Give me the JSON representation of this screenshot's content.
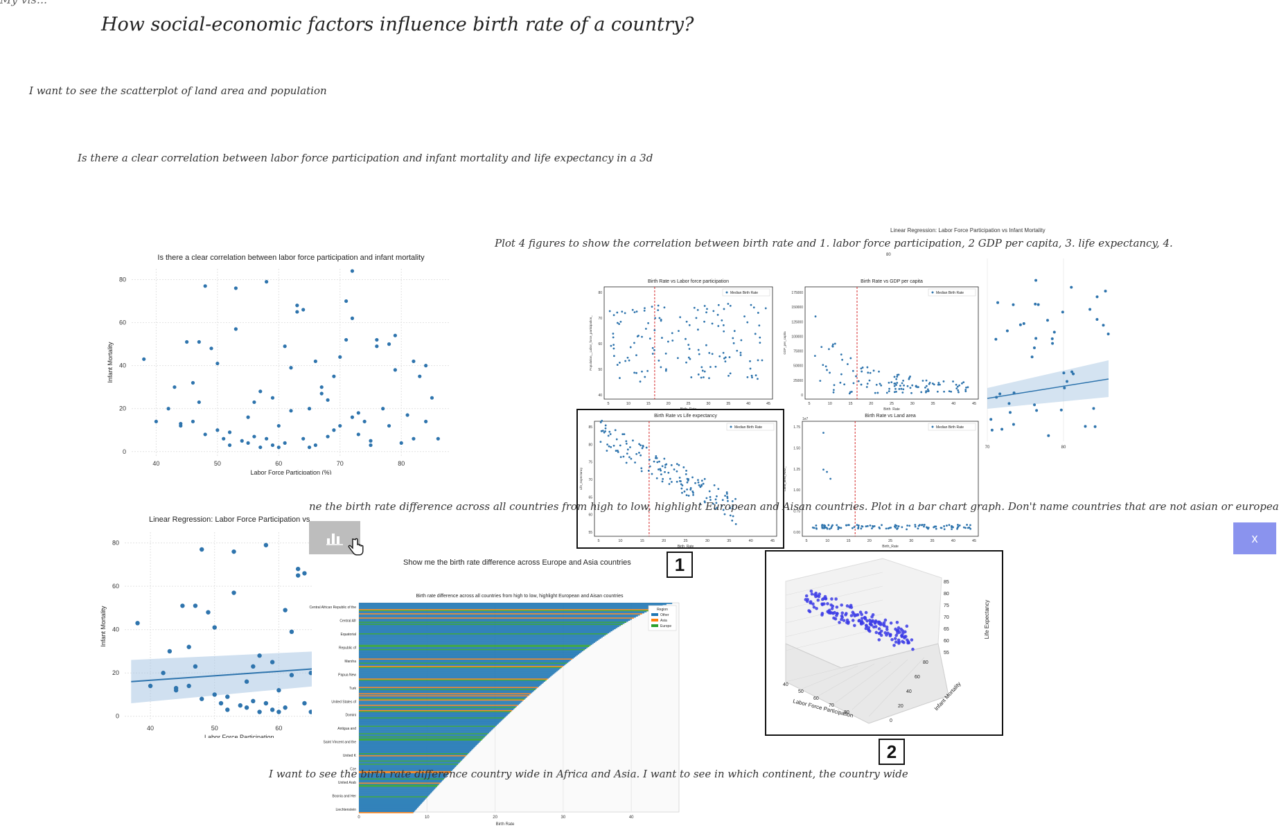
{
  "header": {
    "corner_label": "My vis..."
  },
  "canvas": {
    "main_title": "How social-economic factors influence birth rate of a country?",
    "note_1": "I want to see the scatterplot of land area and population",
    "note_2": "Is there a clear correlation between labor force participation and infant mortality and life expectancy in a 3d",
    "note_3": "Plot 4 figures to show the correlation between birth rate and 1. labor force participation, 2 GDP per capita, 3. life expectancy, 4.",
    "note_4": "ne the birth rate difference across all countries from high to low, highlight European and Aisan countries. Plot in a bar chart graph. Don't name countries that are not asian or european",
    "note_5": "Show me the birth rate difference across Europe and Asia countries",
    "note_6": "I want to see the birth rate difference country wide in Africa and Asia. I want to see in which continent, the country wide",
    "badge_1": "1",
    "badge_2": "2",
    "close_button": "x"
  },
  "chart_data": [
    {
      "type": "scatter",
      "title": "Is there a clear correlation between labor force participation and infant mortality",
      "xlabel": "Labor Force Participation (%)",
      "ylabel": "Infant Mortality",
      "xlim": [
        36,
        88
      ],
      "ylim": [
        -2,
        85
      ],
      "xticks": [
        "40",
        "50",
        "60",
        "70",
        "80"
      ],
      "yticks": [
        "0",
        "20",
        "40",
        "60",
        "80"
      ],
      "grid": true,
      "x": [
        38,
        40,
        42,
        43,
        44,
        45,
        46,
        47,
        48,
        49,
        50,
        51,
        52,
        53,
        54,
        55,
        56,
        57,
        58,
        59,
        60,
        61,
        62,
        63,
        64,
        65,
        66,
        67,
        68,
        69,
        70,
        71,
        72,
        73,
        74,
        75,
        76,
        77,
        78,
        79,
        80,
        81,
        82,
        83,
        84,
        85,
        86,
        47,
        53,
        57,
        59,
        61,
        63,
        66,
        69,
        71,
        72,
        48,
        50,
        55,
        58,
        62,
        64,
        67,
        70,
        73,
        76,
        79,
        84,
        44,
        46,
        52,
        56,
        60,
        65,
        68,
        72,
        75,
        78,
        82
      ],
      "y": [
        43,
        14,
        20,
        30,
        13,
        51,
        14,
        23,
        77,
        48,
        10,
        6,
        3,
        76,
        5,
        4,
        7,
        2,
        6,
        3,
        2,
        4,
        39,
        65,
        6,
        2,
        3,
        30,
        24,
        10,
        12,
        70,
        84,
        18,
        14,
        3,
        52,
        20,
        12,
        38,
        4,
        17,
        6,
        35,
        14,
        25,
        6,
        51,
        57,
        28,
        25,
        49,
        68,
        42,
        35,
        52,
        62,
        8,
        41,
        16,
        79,
        19,
        66,
        27,
        44,
        8,
        49,
        54,
        40,
        12,
        32,
        9,
        23,
        12,
        20,
        7,
        16,
        5,
        50,
        42
      ]
    },
    {
      "type": "scatter",
      "title": "Linear Regression: Labor Force Participation vs Infant Mortality",
      "xlabel": "Labor Force Participation",
      "ylabel": "Infant Mortality",
      "xlim": [
        36,
        66
      ],
      "ylim": [
        -2,
        85
      ],
      "xticks": [
        "40",
        "50",
        "60"
      ],
      "yticks": [
        "0",
        "20",
        "40",
        "60",
        "80"
      ],
      "x": [
        38,
        40,
        42,
        43,
        44,
        45,
        46,
        47,
        48,
        49,
        50,
        51,
        52,
        53,
        54,
        55,
        56,
        57,
        58,
        59,
        60,
        61,
        62,
        63,
        64,
        65,
        47,
        53,
        57,
        59,
        61,
        63,
        48,
        50,
        55,
        58,
        62,
        64,
        44,
        46,
        52,
        56,
        60,
        65
      ],
      "y": [
        43,
        14,
        20,
        30,
        13,
        51,
        14,
        23,
        77,
        48,
        10,
        6,
        3,
        76,
        5,
        4,
        7,
        2,
        6,
        3,
        2,
        4,
        39,
        65,
        6,
        2,
        51,
        57,
        28,
        25,
        49,
        68,
        8,
        41,
        16,
        79,
        19,
        66,
        12,
        32,
        9,
        23,
        12,
        20
      ]
    },
    {
      "type": "scatter",
      "title": "Birth Rate vs Labor force participation",
      "xlabel": "Birth_Rate",
      "ylabel": "Population__Labor_force_participation_",
      "legend": "Median Birth Rate",
      "xticks": [
        "5",
        "10",
        "15",
        "20",
        "25",
        "30",
        "35",
        "40",
        "45"
      ],
      "yticks": [
        "40",
        "50",
        "60",
        "70",
        "80"
      ]
    },
    {
      "type": "scatter",
      "title": "Birth Rate vs GDP per capita",
      "xlabel": "Birth_Rate",
      "ylabel": "GDP_per_capita",
      "legend": "Median Birth Rate",
      "xticks": [
        "5",
        "10",
        "15",
        "20",
        "25",
        "30",
        "35",
        "40",
        "45"
      ],
      "yticks": [
        "0",
        "25000",
        "50000",
        "75000",
        "100000",
        "125000",
        "150000",
        "175000"
      ]
    },
    {
      "type": "scatter",
      "title": "Birth Rate vs Life expectancy",
      "xlabel": "Birth_Rate",
      "ylabel": "Life_expectancy",
      "legend": "Median Birth Rate",
      "xticks": [
        "5",
        "10",
        "15",
        "20",
        "25",
        "30",
        "35",
        "40",
        "45"
      ],
      "yticks": [
        "55",
        "60",
        "65",
        "70",
        "75",
        "80",
        "85"
      ]
    },
    {
      "type": "scatter",
      "title": "Birth Rate vs Land area",
      "xlabel": "Birth_Rate",
      "ylabel": "Land_area_Km2_",
      "legend": "Median Birth Rate",
      "offset_label": "1e7",
      "xticks": [
        "5",
        "10",
        "15",
        "20",
        "25",
        "30",
        "35",
        "40",
        "45"
      ],
      "yticks": [
        "0.00",
        "0.75",
        "1.00",
        "1.25",
        "1.50",
        "1.75"
      ]
    },
    {
      "type": "bar",
      "title": "Birth rate difference across all countries from high to low, highlight European and Aisan countries",
      "xlabel": "Birth Rate",
      "xticks": [
        "0",
        "10",
        "20",
        "30",
        "40"
      ],
      "legend_title": "Region",
      "series": [
        {
          "name": "Other",
          "color": "#1f77b4"
        },
        {
          "name": "Asia",
          "color": "#ff7f0e"
        },
        {
          "name": "Europe",
          "color": "#2ca02c"
        }
      ],
      "category_labels": [
        "Central African Republic of the",
        "Central Afr",
        "Equatorial",
        "Republic of",
        "Marsha",
        "Papua New",
        "Turk",
        "United States of",
        "Domini",
        "Antigua and",
        "Saint Vincent and the",
        "United K",
        "Cze",
        "United Arab",
        "Bosnia and Her",
        "Liechtenstein"
      ]
    },
    {
      "type": "scatter",
      "title": "",
      "xlabel": "Labor Force Participation",
      "ylabel": "Infant Mortality",
      "zlabel": "Life Expectancy",
      "xticks": [
        "40",
        "50",
        "60",
        "70",
        "80"
      ],
      "yticks": [
        "0",
        "20",
        "40",
        "60",
        "80"
      ],
      "zticks": [
        "55",
        "60",
        "65",
        "70",
        "75",
        "80",
        "85"
      ]
    },
    {
      "type": "scatter",
      "title": "Linear Regression: Labor Force Participation vs Infant Mortality",
      "yticks": [
        "80"
      ],
      "xticks": [
        "70",
        "80"
      ]
    }
  ]
}
